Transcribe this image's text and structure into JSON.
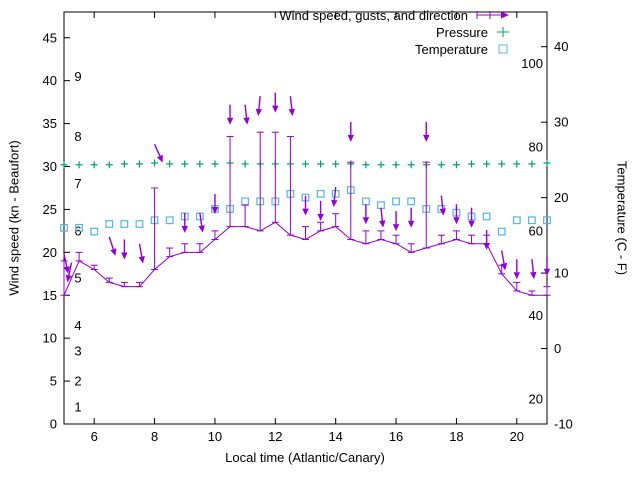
{
  "chart_data": {
    "type": "line",
    "title": "",
    "xlabel": "Local time (Atlantic/Canary)",
    "ylabel": "Wind speed (kn - Beaufort)",
    "y2label": "Temperature (C - F)",
    "xlim": [
      5,
      21
    ],
    "ylim": [
      0,
      48
    ],
    "y2lim": [
      -10,
      44.6
    ],
    "xticks": [
      6,
      8,
      10,
      12,
      14,
      16,
      18,
      20
    ],
    "yticks": [
      0,
      5,
      10,
      15,
      20,
      25,
      30,
      35,
      40,
      45
    ],
    "y2ticks": [
      -10,
      0,
      10,
      20,
      30,
      40
    ],
    "beaufort_scale_labels": [
      [
        1,
        2
      ],
      [
        2,
        5
      ],
      [
        3,
        8.5
      ],
      [
        4,
        11.5
      ],
      [
        5,
        17
      ],
      [
        6,
        22.5
      ],
      [
        7,
        28
      ],
      [
        8,
        33.5
      ],
      [
        9,
        40.5
      ]
    ],
    "fahrenheit_scale_labels": [
      [
        20,
        -6.7
      ],
      [
        40,
        4.4
      ],
      [
        60,
        15.6
      ],
      [
        80,
        26.7
      ],
      [
        100,
        37.8
      ]
    ],
    "x": [
      5,
      5.5,
      6,
      6.5,
      7,
      7.5,
      8,
      8.5,
      9,
      9.5,
      10,
      10.5,
      11,
      11.5,
      12,
      12.5,
      13,
      13.5,
      14,
      14.5,
      15,
      15.5,
      16,
      16.5,
      17,
      17.5,
      18,
      18.5,
      19,
      19.5,
      20,
      20.5,
      21
    ],
    "series": [
      {
        "name": "Wind speed (kn)",
        "axis": "y1",
        "color": "#9400d3",
        "values": [
          15,
          19,
          18,
          16.5,
          16,
          16,
          18,
          19.5,
          20,
          20,
          21.5,
          23,
          23,
          22.5,
          23.5,
          22,
          21.5,
          22.5,
          23,
          21.5,
          21,
          21.5,
          21,
          20,
          20.5,
          21,
          21.5,
          21,
          21,
          17.5,
          15.5,
          15,
          15
        ]
      },
      {
        "name": "Gusts (kn)",
        "axis": "y1",
        "color": "#9400d3",
        "values": [
          19,
          20,
          18.5,
          17,
          16.5,
          16.5,
          27.5,
          20.5,
          21,
          21,
          22.5,
          33.5,
          25.5,
          34,
          34,
          33.5,
          23,
          23.5,
          24.5,
          30.5,
          22.5,
          22.5,
          22,
          21,
          30.5,
          22,
          22.5,
          22,
          22,
          18.5,
          16.5,
          15.5,
          16
        ]
      },
      {
        "name": "Pressure",
        "axis": "y1",
        "color": "#009e73",
        "values": [
          30.2,
          30.2,
          30.2,
          30.2,
          30.3,
          30.3,
          30.4,
          30.3,
          30.3,
          30.3,
          30.3,
          30.4,
          30.3,
          30.3,
          30.3,
          30.3,
          30.3,
          30.3,
          30.3,
          30.3,
          30.2,
          30.2,
          30.2,
          30.2,
          30.2,
          30.2,
          30.2,
          30.3,
          30.3,
          30.3,
          30.3,
          30.3,
          30.4
        ]
      },
      {
        "name": "Temperature (C)",
        "axis": "y2",
        "color": "#56b4e9",
        "values": [
          16,
          16,
          15.5,
          16.5,
          16.5,
          16.5,
          17,
          17,
          17.5,
          17.5,
          18.5,
          18.5,
          19.5,
          19.5,
          19.5,
          20.5,
          20,
          20.5,
          20.5,
          21,
          19.5,
          19,
          19.5,
          19.5,
          18.5,
          18.5,
          18,
          17.5,
          17.5,
          15.5,
          17,
          17,
          17
        ]
      }
    ],
    "wind_direction_arrows": [
      [
        5.0,
        19.8,
        12
      ],
      [
        5.25,
        18.8,
        -12
      ],
      [
        6.5,
        21.8,
        18
      ],
      [
        7.0,
        21.5,
        0
      ],
      [
        7.5,
        21.0,
        10
      ],
      [
        8.0,
        32.6,
        24
      ],
      [
        9.0,
        24.6,
        0
      ],
      [
        9.5,
        24.6,
        8
      ],
      [
        10.0,
        26.8,
        0
      ],
      [
        10.5,
        37.2,
        0
      ],
      [
        11.0,
        37.2,
        6
      ],
      [
        11.5,
        38.2,
        -6
      ],
      [
        12.0,
        38.6,
        0
      ],
      [
        12.5,
        38.2,
        6
      ],
      [
        13.0,
        26.6,
        0
      ],
      [
        13.5,
        26.0,
        0
      ],
      [
        14.0,
        27.6,
        -6
      ],
      [
        14.5,
        35.2,
        0
      ],
      [
        15.0,
        25.6,
        0
      ],
      [
        15.5,
        25.2,
        6
      ],
      [
        16.0,
        24.8,
        0
      ],
      [
        16.5,
        25.2,
        0
      ],
      [
        17.0,
        35.2,
        0
      ],
      [
        17.5,
        26.6,
        6
      ],
      [
        18.0,
        25.6,
        0
      ],
      [
        18.5,
        25.2,
        0
      ],
      [
        19.0,
        22.6,
        0
      ],
      [
        19.5,
        20.2,
        10
      ],
      [
        20.0,
        19.2,
        0
      ],
      [
        20.5,
        19.2,
        6
      ],
      [
        21.0,
        19.6,
        0
      ]
    ],
    "legend": [
      {
        "label": "Wind speed, gusts, and direction",
        "marker": "wind-errorbar-arrow",
        "color": "#9400d3"
      },
      {
        "label": "Pressure",
        "marker": "plus",
        "color": "#009e73"
      },
      {
        "label": "Temperature",
        "marker": "open-square",
        "color": "#56b4e9"
      }
    ],
    "grid": false,
    "legend_position": "top-right-inside"
  }
}
